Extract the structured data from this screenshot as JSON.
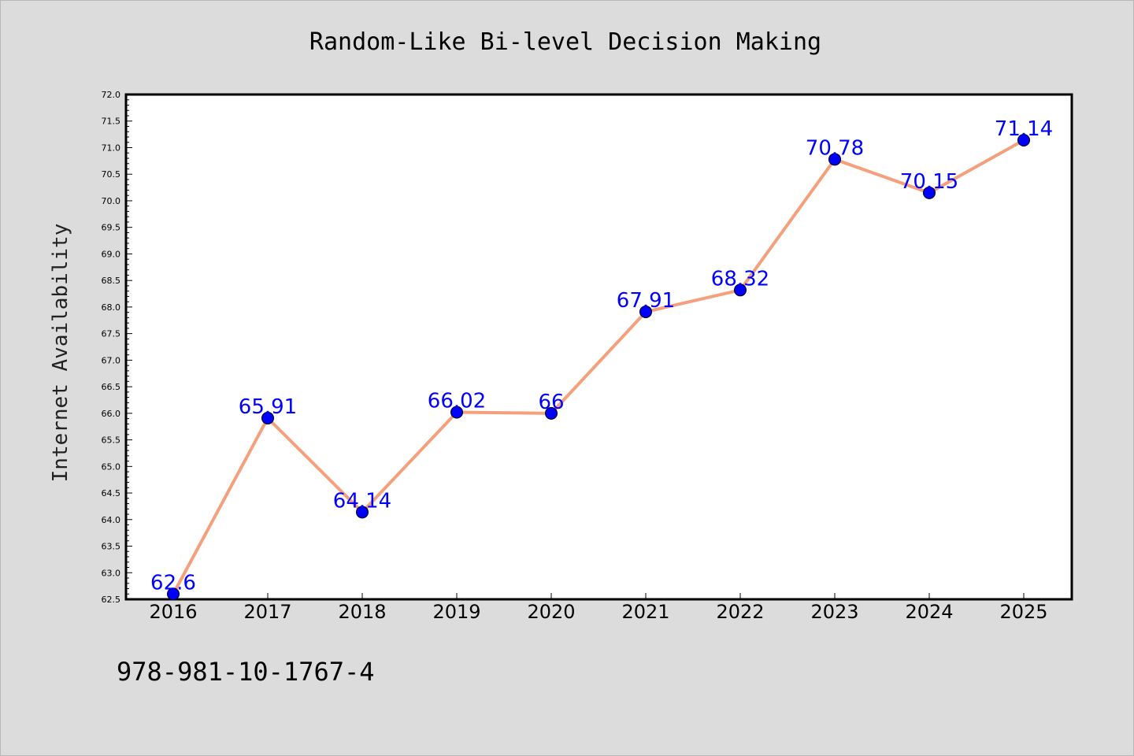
{
  "chart_data": {
    "type": "line",
    "title": "Random-Like Bi-level Decision Making",
    "xlabel": "",
    "ylabel": "Internet Availability",
    "x": [
      "2016",
      "2017",
      "2018",
      "2019",
      "2020",
      "2021",
      "2022",
      "2023",
      "2024",
      "2025"
    ],
    "series": [
      {
        "values": [
          62.6,
          65.91,
          64.14,
          66.02,
          66,
          67.91,
          68.32,
          70.78,
          70.15,
          71.14
        ],
        "labels": [
          "62.6",
          "65.91",
          "64.14",
          "66.02",
          "66",
          "67.91",
          "68.32",
          "70.78",
          "70.15",
          "71.14"
        ]
      }
    ],
    "ylim": [
      62.5,
      72.0
    ],
    "yticks": [
      "62.5",
      "63.0",
      "63.5",
      "64.0",
      "64.5",
      "65.0",
      "65.5",
      "66.0",
      "66.5",
      "67.0",
      "67.5",
      "68.0",
      "68.5",
      "69.0",
      "69.5",
      "70.0",
      "70.5",
      "71.0",
      "71.5",
      "72.0"
    ],
    "grid": false,
    "colors": {
      "line": "#f4a07c",
      "marker": "#0000ff",
      "data_label": "#0000ff",
      "background": "#dcdcdc",
      "plot_area": "#ffffff"
    }
  },
  "footer": {
    "isbn": "978-981-10-1767-4"
  }
}
